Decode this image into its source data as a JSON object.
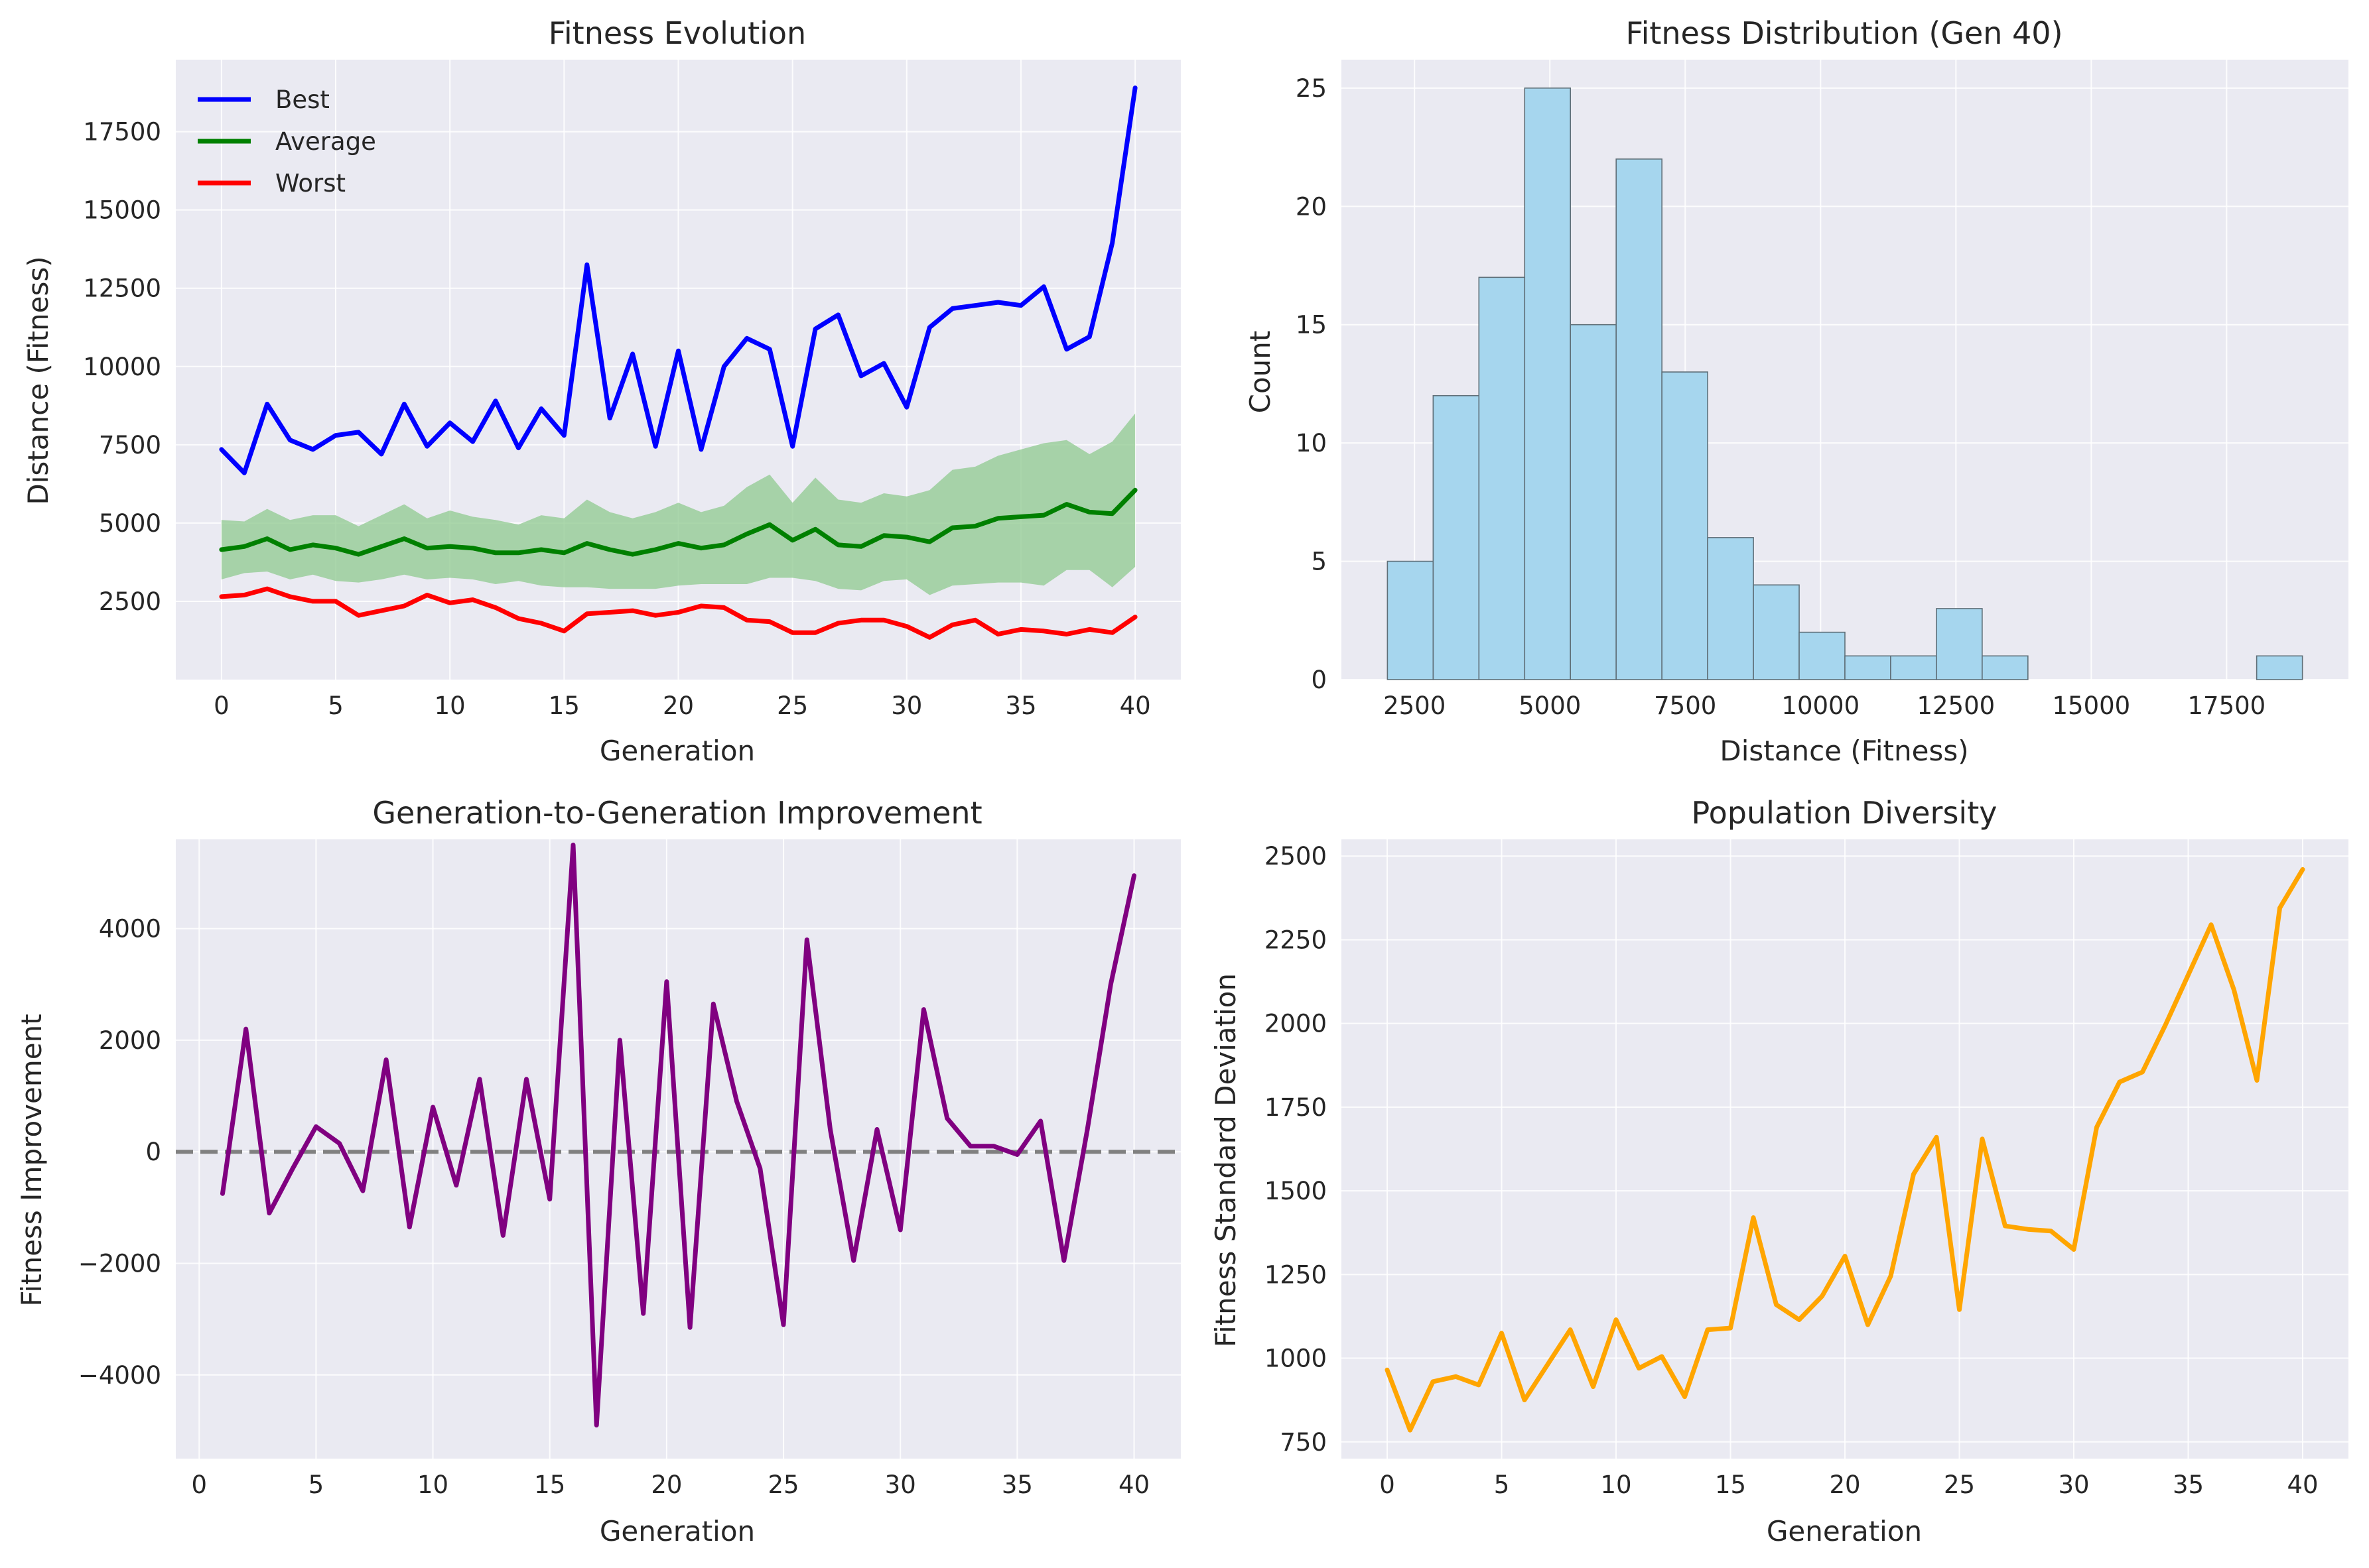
{
  "colors": {
    "panel_bg": "#EAEAF2",
    "best": "#0000FF",
    "average": "#008000",
    "worst": "#FF0000",
    "band": "#8FC98F",
    "hist_fill": "#A6D6EE",
    "hist_edge": "#5F6F78",
    "improvement": "#800080",
    "zero_line": "#808080",
    "diversity": "#FFA500"
  },
  "chart_data": [
    {
      "id": "evolution",
      "type": "line",
      "title": "Fitness Evolution",
      "xlabel": "Generation",
      "ylabel": "Distance (Fitness)",
      "xlim": [
        -2,
        42
      ],
      "ylim": [
        0,
        19800
      ],
      "xticks": [
        0,
        5,
        10,
        15,
        20,
        25,
        30,
        35,
        40
      ],
      "yticks": [
        2500,
        5000,
        7500,
        10000,
        12500,
        15000,
        17500
      ],
      "grid": true,
      "legend": "top-left",
      "x": [
        0,
        1,
        2,
        3,
        4,
        5,
        6,
        7,
        8,
        9,
        10,
        11,
        12,
        13,
        14,
        15,
        16,
        17,
        18,
        19,
        20,
        21,
        22,
        23,
        24,
        25,
        26,
        27,
        28,
        29,
        30,
        31,
        32,
        33,
        34,
        35,
        36,
        37,
        38,
        39,
        40
      ],
      "series": [
        {
          "name": "Best",
          "color_key": "best",
          "values": [
            7350,
            6600,
            8800,
            7650,
            7350,
            7800,
            7900,
            7200,
            8800,
            7450,
            8200,
            7600,
            8900,
            7400,
            8650,
            7800,
            13250,
            8350,
            10400,
            7450,
            10500,
            7350,
            10000,
            10900,
            10550,
            7450,
            11200,
            11650,
            9700,
            10100,
            8700,
            11250,
            11850,
            11950,
            12050,
            11950,
            12550,
            10550,
            10950,
            13950,
            18900
          ]
        },
        {
          "name": "Average",
          "color_key": "average",
          "values": [
            4150,
            4250,
            4500,
            4150,
            4300,
            4200,
            4000,
            4250,
            4500,
            4200,
            4250,
            4200,
            4050,
            4050,
            4150,
            4050,
            4350,
            4150,
            4000,
            4150,
            4350,
            4200,
            4300,
            4650,
            4950,
            4450,
            4800,
            4300,
            4250,
            4600,
            4550,
            4400,
            4850,
            4900,
            5150,
            5200,
            5250,
            5600,
            5350,
            5300,
            6050
          ]
        },
        {
          "name": "Worst",
          "color_key": "worst",
          "values": [
            2650,
            2700,
            2900,
            2650,
            2500,
            2500,
            2050,
            2200,
            2350,
            2700,
            2450,
            2550,
            2300,
            1950,
            1800,
            1550,
            2100,
            2150,
            2200,
            2050,
            2150,
            2350,
            2300,
            1900,
            1850,
            1500,
            1500,
            1800,
            1900,
            1900,
            1700,
            1350,
            1750,
            1900,
            1450,
            1600,
            1550,
            1450,
            1600,
            1500,
            2000
          ]
        }
      ],
      "band": {
        "color_key": "band",
        "lower": [
          3200,
          3400,
          3450,
          3200,
          3350,
          3150,
          3100,
          3200,
          3350,
          3200,
          3250,
          3200,
          3050,
          3150,
          3000,
          2950,
          2950,
          2900,
          2900,
          2900,
          3000,
          3050,
          3050,
          3050,
          3250,
          3250,
          3150,
          2900,
          2850,
          3150,
          3200,
          2700,
          3000,
          3050,
          3100,
          3100,
          3000,
          3500,
          3500,
          2950,
          3600
        ],
        "upper": [
          5100,
          5050,
          5450,
          5100,
          5250,
          5250,
          4900,
          5250,
          5600,
          5150,
          5400,
          5200,
          5100,
          4950,
          5250,
          5150,
          5750,
          5350,
          5150,
          5350,
          5650,
          5350,
          5550,
          6150,
          6550,
          5650,
          6450,
          5750,
          5650,
          5950,
          5850,
          6050,
          6700,
          6800,
          7150,
          7350,
          7550,
          7650,
          7200,
          7600,
          8500
        ]
      }
    },
    {
      "id": "distribution",
      "type": "bar",
      "title": "Fitness Distribution (Gen 40)",
      "xlabel": "Distance (Fitness)",
      "ylabel": "Count",
      "xlim": [
        1150,
        19750
      ],
      "ylim": [
        0,
        26.2
      ],
      "xticks": [
        2500,
        5000,
        7500,
        10000,
        12500,
        15000,
        17500
      ],
      "yticks": [
        0,
        5,
        10,
        15,
        20,
        25
      ],
      "grid": true,
      "bin_edges": [
        2000,
        2845,
        3690,
        4535,
        5380,
        6225,
        7070,
        7915,
        8760,
        9605,
        10450,
        11295,
        12140,
        12985,
        13830,
        14675,
        15520,
        16365,
        17210,
        18055,
        18900
      ],
      "values": [
        5,
        12,
        17,
        25,
        15,
        22,
        13,
        6,
        4,
        2,
        1,
        1,
        3,
        1,
        0,
        0,
        0,
        0,
        0,
        1
      ]
    },
    {
      "id": "improvement",
      "type": "line",
      "title": "Generation-to-Generation Improvement",
      "xlabel": "Generation",
      "ylabel": "Fitness Improvement",
      "xlim": [
        -1,
        42
      ],
      "ylim": [
        -5500,
        5600
      ],
      "xticks": [
        0,
        5,
        10,
        15,
        20,
        25,
        30,
        35,
        40
      ],
      "yticks": [
        -4000,
        -2000,
        0,
        2000,
        4000
      ],
      "grid": true,
      "reference_line": 0,
      "x": [
        1,
        2,
        3,
        4,
        5,
        6,
        7,
        8,
        9,
        10,
        11,
        12,
        13,
        14,
        15,
        16,
        17,
        18,
        19,
        20,
        21,
        22,
        23,
        24,
        25,
        26,
        27,
        28,
        29,
        30,
        31,
        32,
        33,
        34,
        35,
        36,
        37,
        38,
        39,
        40
      ],
      "series": [
        {
          "color_key": "improvement",
          "values": [
            -750,
            2200,
            -1100,
            -300,
            450,
            150,
            -700,
            1650,
            -1350,
            800,
            -600,
            1300,
            -1500,
            1300,
            -850,
            5500,
            -4900,
            2000,
            -2900,
            3050,
            -3150,
            2650,
            900,
            -300,
            -3100,
            3800,
            400,
            -1950,
            400,
            -1400,
            2550,
            600,
            100,
            100,
            -50,
            550,
            -1950,
            400,
            3000,
            4950
          ]
        }
      ]
    },
    {
      "id": "diversity",
      "type": "line",
      "title": "Population Diversity",
      "xlabel": "Generation",
      "ylabel": "Fitness Standard Deviation",
      "xlim": [
        -2,
        42
      ],
      "ylim": [
        700,
        2550
      ],
      "xticks": [
        0,
        5,
        10,
        15,
        20,
        25,
        30,
        35,
        40
      ],
      "yticks": [
        750,
        1000,
        1250,
        1500,
        1750,
        2000,
        2250,
        2500
      ],
      "grid": true,
      "x": [
        0,
        1,
        2,
        3,
        4,
        5,
        6,
        7,
        8,
        9,
        10,
        11,
        12,
        13,
        14,
        15,
        16,
        17,
        18,
        19,
        20,
        21,
        22,
        23,
        24,
        25,
        26,
        27,
        28,
        29,
        30,
        31,
        32,
        33,
        34,
        35,
        36,
        37,
        38,
        39,
        40
      ],
      "series": [
        {
          "color_key": "diversity",
          "values": [
            965,
            785,
            930,
            945,
            920,
            1075,
            875,
            980,
            1085,
            915,
            1115,
            970,
            1005,
            885,
            1085,
            1090,
            1420,
            1160,
            1115,
            1185,
            1305,
            1100,
            1245,
            1550,
            1660,
            1145,
            1655,
            1395,
            1385,
            1380,
            1325,
            1690,
            1825,
            1855,
            1995,
            2145,
            2295,
            2100,
            1830,
            2345,
            2460
          ]
        }
      ]
    }
  ]
}
